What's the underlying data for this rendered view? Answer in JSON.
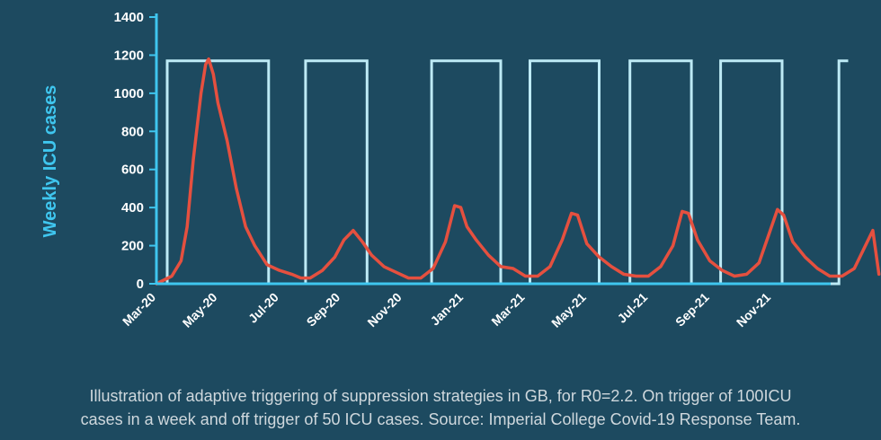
{
  "chart_data": {
    "type": "line",
    "ylabel": "Weekly ICU cases",
    "xlabel": "",
    "ylim": [
      0,
      1400
    ],
    "yticks": [
      0,
      200,
      400,
      600,
      800,
      1000,
      1200,
      1400
    ],
    "xticks": [
      "Mar-20",
      "May-20",
      "Jul-20",
      "Sep-20",
      "Nov-20",
      "Jan-21",
      "Mar-21",
      "May-21",
      "Jul-21",
      "Sep-21",
      "Nov-21"
    ],
    "x_unit": "months since Mar-20",
    "xlim": [
      0,
      22.5
    ],
    "grid": false,
    "legend": "none",
    "colors": {
      "background": "#1d4a60",
      "axes": "#3fc6ef",
      "suppression": "#bdeaf5",
      "cases": "#e5503f"
    },
    "series": [
      {
        "style": "line",
        "points": [
          [
            0,
            0
          ],
          [
            0.5,
            40
          ],
          [
            0.8,
            120
          ],
          [
            1.0,
            300
          ],
          [
            1.2,
            650
          ],
          [
            1.45,
            1000
          ],
          [
            1.6,
            1150
          ],
          [
            1.7,
            1180
          ],
          [
            1.85,
            1100
          ],
          [
            2.0,
            950
          ],
          [
            2.3,
            750
          ],
          [
            2.6,
            500
          ],
          [
            2.9,
            300
          ],
          [
            3.2,
            200
          ],
          [
            3.6,
            100
          ],
          [
            4.0,
            70
          ],
          [
            4.4,
            50
          ],
          [
            4.7,
            30
          ],
          [
            5.0,
            30
          ],
          [
            5.4,
            70
          ],
          [
            5.8,
            140
          ],
          [
            6.1,
            230
          ],
          [
            6.4,
            280
          ],
          [
            6.7,
            220
          ],
          [
            7.0,
            150
          ],
          [
            7.4,
            90
          ],
          [
            7.8,
            60
          ],
          [
            8.2,
            30
          ],
          [
            8.6,
            30
          ],
          [
            9.0,
            80
          ],
          [
            9.4,
            220
          ],
          [
            9.7,
            410
          ],
          [
            9.9,
            400
          ],
          [
            10.1,
            300
          ],
          [
            10.4,
            230
          ],
          [
            10.8,
            150
          ],
          [
            11.2,
            90
          ],
          [
            11.6,
            80
          ],
          [
            12.0,
            40
          ],
          [
            12.4,
            40
          ],
          [
            12.8,
            90
          ],
          [
            13.2,
            230
          ],
          [
            13.5,
            370
          ],
          [
            13.7,
            360
          ],
          [
            14.0,
            210
          ],
          [
            14.4,
            140
          ],
          [
            14.8,
            90
          ],
          [
            15.2,
            50
          ],
          [
            15.6,
            40
          ],
          [
            16.0,
            40
          ],
          [
            16.4,
            90
          ],
          [
            16.8,
            200
          ],
          [
            17.1,
            380
          ],
          [
            17.3,
            370
          ],
          [
            17.6,
            230
          ],
          [
            18.0,
            120
          ],
          [
            18.4,
            70
          ],
          [
            18.8,
            40
          ],
          [
            19.2,
            50
          ],
          [
            19.6,
            110
          ],
          [
            19.9,
            250
          ],
          [
            20.2,
            390
          ],
          [
            20.4,
            360
          ],
          [
            20.7,
            220
          ],
          [
            21.1,
            140
          ],
          [
            21.5,
            80
          ],
          [
            21.9,
            40
          ],
          [
            22.3,
            40
          ],
          [
            22.7,
            80
          ],
          [
            23.0,
            180
          ],
          [
            23.3,
            280
          ],
          [
            23.5,
            50
          ]
        ]
      },
      {
        "style": "step",
        "points": [
          [
            0.35,
            0
          ],
          [
            0.35,
            1170
          ],
          [
            3.65,
            1170
          ],
          [
            3.65,
            0
          ],
          [
            4.85,
            0
          ],
          [
            4.85,
            1170
          ],
          [
            6.85,
            1170
          ],
          [
            6.85,
            0
          ],
          [
            8.95,
            0
          ],
          [
            8.95,
            1170
          ],
          [
            11.2,
            1170
          ],
          [
            11.2,
            0
          ],
          [
            12.15,
            0
          ],
          [
            12.15,
            1170
          ],
          [
            14.4,
            1170
          ],
          [
            14.4,
            0
          ],
          [
            15.4,
            0
          ],
          [
            15.4,
            1170
          ],
          [
            17.4,
            1170
          ],
          [
            17.4,
            0
          ],
          [
            18.35,
            0
          ],
          [
            18.35,
            1170
          ],
          [
            20.35,
            1170
          ],
          [
            20.35,
            0
          ],
          [
            22.2,
            0
          ],
          [
            22.2,
            1170
          ],
          [
            22.5,
            1170
          ]
        ]
      }
    ]
  },
  "caption": {
    "line1": "Illustration of adaptive triggering of suppression strategies in GB, for R0=2.2. On trigger of 100ICU",
    "line2": "cases in a week and off trigger of 50 ICU cases. Source: Imperial College Covid-19 Response Team."
  }
}
